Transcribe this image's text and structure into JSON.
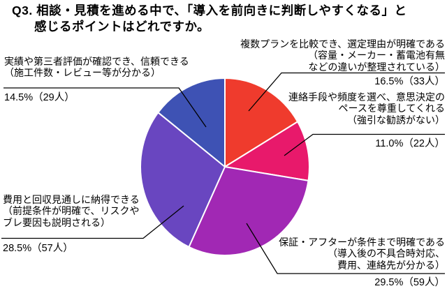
{
  "title": {
    "line1": "Q3. 相談・見積を進める中で、「導入を前向きに判断しやすくなる」と",
    "line2": "感じるポイントはどれですか。"
  },
  "chart_data": {
    "type": "pie",
    "title": "Q3. 相談・見積を進める中で、「導入を前向きに判断しやすくなる」と感じるポイントはどれですか。",
    "start_angle_deg": -90,
    "direction": "clockwise",
    "legend": "none (leader-line callouts)",
    "slices": [
      {
        "id": "plan-comparison",
        "label": "複数プランを比較でき、選定理由が明確である（容量・メーカー・蓄電池有無などの違いが整理されている）",
        "percent": 16.5,
        "count": 33,
        "color": "#EF3B2D"
      },
      {
        "id": "contact-pace",
        "label": "連絡手段や頻度を選べ、意思決定のペースを尊重してくれる（強引な勧誘がない）",
        "percent": 11.0,
        "count": 22,
        "color": "#E8196B"
      },
      {
        "id": "warranty-clarity",
        "label": "保証・アフターが条件まで明確である（導入後の不具合時対応、費用、連絡先が分かる）",
        "percent": 29.5,
        "count": 59,
        "color": "#A128B4"
      },
      {
        "id": "cost-payback",
        "label": "費用と回収見通しに納得できる（前提条件が明確で、リスクやブレ要因も説明される）",
        "percent": 28.5,
        "count": 57,
        "color": "#6946C0"
      },
      {
        "id": "track-record",
        "label": "実績や第三者評価が確認でき、信頼できる（施工件数・レビュー等が分かる）",
        "percent": 14.5,
        "count": 29,
        "color": "#3E52B4"
      }
    ]
  },
  "callouts": [
    {
      "id": "plan-comparison",
      "lines": [
        "複数プランを比較でき、選定理由が明確である",
        "（容量・メーカー・蓄電池有無",
        "などの違いが整理されている）"
      ],
      "pct": "16.5%（33人）"
    },
    {
      "id": "contact-pace",
      "lines": [
        "連絡手段や頻度を選べ、意思決定の",
        "ペースを尊重してくれる",
        "（強引な勧誘がない）"
      ],
      "pct": "11.0%（22人）"
    },
    {
      "id": "warranty-clarity",
      "lines": [
        "保証・アフターが条件まで明確である",
        "（導入後の不具合時対応、",
        "費用、連絡先が分かる）"
      ],
      "pct": "29.5%（59人）"
    },
    {
      "id": "cost-payback",
      "lines": [
        "費用と回収見通しに納得できる",
        "（前提条件が明確で、リスクや",
        "ブレ要因も説明される）"
      ],
      "pct": "28.5%（57人）"
    },
    {
      "id": "track-record",
      "lines": [
        "実績や第三者評価が確認でき、信頼できる",
        "（施工件数・レビュー等が分かる）"
      ],
      "pct": "14.5%（29人）"
    }
  ]
}
